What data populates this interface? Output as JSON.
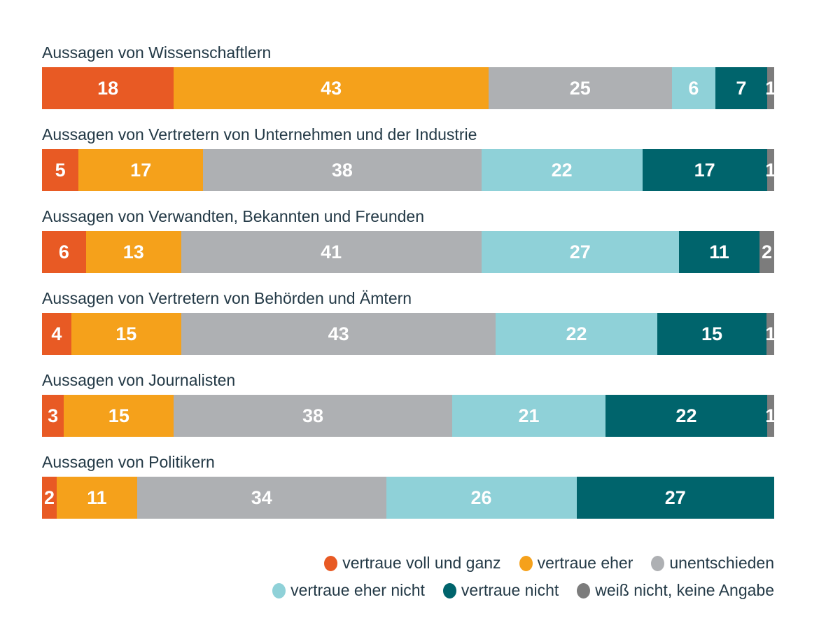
{
  "chart_data": {
    "type": "bar",
    "orientation": "horizontal-stacked",
    "unit": "percent",
    "xlim": [
      0,
      100
    ],
    "grid": false,
    "axes_shown": false,
    "legend_position": "bottom-right",
    "categories": [
      "Aussagen von Wissenschaftlern",
      "Aussagen von Vertretern von Unternehmen und der Industrie",
      "Aussagen von Verwandten, Bekannten und Freunden",
      "Aussagen von Vertretern von Behörden und Ämtern",
      "Aussagen von Journalisten",
      "Aussagen von Politikern"
    ],
    "series": [
      {
        "name": "vertraue voll und ganz",
        "color": "#E85A24",
        "values": [
          18,
          5,
          6,
          4,
          3,
          2
        ]
      },
      {
        "name": "vertraue eher",
        "color": "#F5A11B",
        "values": [
          43,
          17,
          13,
          15,
          15,
          11
        ]
      },
      {
        "name": "unentschieden",
        "color": "#AEB0B3",
        "values": [
          25,
          38,
          41,
          43,
          38,
          34
        ]
      },
      {
        "name": "vertraue eher nicht",
        "color": "#8FD1D8",
        "values": [
          6,
          22,
          27,
          22,
          21,
          26
        ]
      },
      {
        "name": "vertraue nicht",
        "color": "#00646C",
        "values": [
          7,
          17,
          11,
          15,
          22,
          27
        ]
      },
      {
        "name": "weiß nicht, keine Angabe",
        "color": "#7C7C7C",
        "values": [
          1,
          1,
          2,
          1,
          1,
          0
        ]
      }
    ],
    "legend_rows": [
      [
        0,
        1,
        2
      ],
      [
        3,
        4,
        5
      ]
    ],
    "value_label_style": "white bold numbers inside segments, zero values hidden"
  },
  "colors": {
    "background": "#FFFFFF",
    "category_label": "#233946",
    "value_label": "#FFFFFF"
  }
}
